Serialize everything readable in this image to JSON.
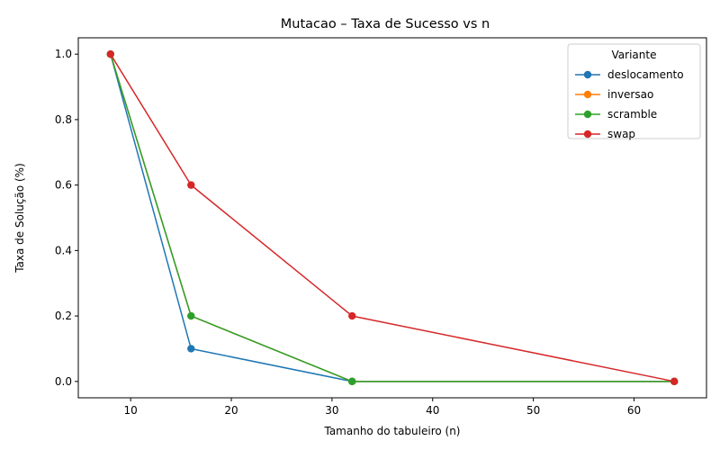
{
  "chart_data": {
    "type": "line",
    "title": "Mutacao – Taxa de Sucesso vs n",
    "xlabel": "Tamanho do tabuleiro (n)",
    "ylabel": "Taxa de Solução (%)",
    "xlim": [
      4.8,
      67.2
    ],
    "ylim": [
      -0.05,
      1.05
    ],
    "xticks": [
      10,
      20,
      30,
      40,
      50,
      60
    ],
    "yticks": [
      0.0,
      0.2,
      0.4,
      0.6,
      0.8,
      1.0
    ],
    "grid": false,
    "legend": {
      "title": "Variante",
      "placement": "top-right"
    },
    "x": [
      8,
      16,
      32,
      64
    ],
    "series": [
      {
        "name": "deslocamento",
        "color": "#1f77b4",
        "values": [
          1.0,
          0.1,
          0.0,
          0.0
        ]
      },
      {
        "name": "inversao",
        "color": "#ff7f0e",
        "values": [
          1.0,
          0.2,
          0.0,
          0.0
        ]
      },
      {
        "name": "scramble",
        "color": "#2ca02c",
        "values": [
          1.0,
          0.2,
          0.0,
          0.0
        ]
      },
      {
        "name": "swap",
        "color": "#d62728",
        "values": [
          1.0,
          0.6,
          0.2,
          0.0
        ]
      }
    ]
  }
}
